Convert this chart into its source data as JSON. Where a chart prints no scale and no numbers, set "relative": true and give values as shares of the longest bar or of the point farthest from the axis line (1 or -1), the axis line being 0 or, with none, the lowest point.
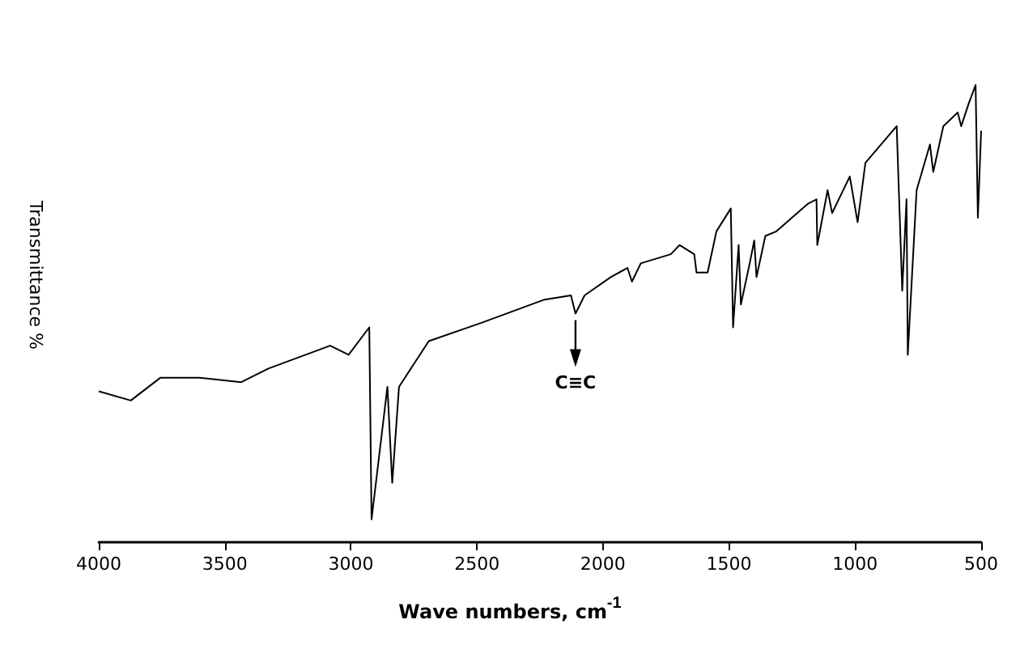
{
  "chart_data": {
    "type": "line",
    "relative": true,
    "xlabel": "Wave numbers, cm$^{-1}$",
    "ylabel": "Transmittance %",
    "xlim": [
      4000,
      500
    ],
    "xticks": [
      4000,
      3500,
      3000,
      2500,
      2000,
      1500,
      1000,
      500
    ],
    "marker": "none",
    "line_style": "solid",
    "grid": false,
    "annotations": [
      {
        "text": "C≡C",
        "x": 2109,
        "y": 0.5
      }
    ],
    "series": [
      {
        "color": "#000000",
        "x": [
          4000,
          3873,
          3755,
          3600,
          3436,
          3327,
          3082,
          3009,
          2927,
          2918,
          2855,
          2836,
          2809,
          2691,
          2482,
          2236,
          2127,
          2109,
          2073,
          1969,
          1903,
          1885,
          1850,
          1731,
          1696,
          1638,
          1629,
          1585,
          1550,
          1493,
          1484,
          1462,
          1453,
          1418,
          1400,
          1391,
          1356,
          1312,
          1188,
          1153,
          1150,
          1109,
          1091,
          1021,
          990,
          959,
          835,
          813,
          796,
          791,
          756,
          703,
          690,
          650,
          593,
          579,
          549,
          522,
          513,
          500
        ],
        "values": [
          0.33,
          0.31,
          0.36,
          0.36,
          0.35,
          0.38,
          0.43,
          0.41,
          0.47,
          0.05,
          0.34,
          0.13,
          0.34,
          0.44,
          0.48,
          0.53,
          0.54,
          0.5,
          0.54,
          0.58,
          0.6,
          0.57,
          0.61,
          0.63,
          0.65,
          0.63,
          0.59,
          0.59,
          0.68,
          0.73,
          0.47,
          0.65,
          0.52,
          0.61,
          0.66,
          0.58,
          0.67,
          0.68,
          0.74,
          0.75,
          0.65,
          0.77,
          0.72,
          0.8,
          0.7,
          0.83,
          0.91,
          0.55,
          0.75,
          0.41,
          0.77,
          0.87,
          0.81,
          0.91,
          0.94,
          0.91,
          0.96,
          1.0,
          0.71,
          0.9
        ]
      }
    ]
  }
}
